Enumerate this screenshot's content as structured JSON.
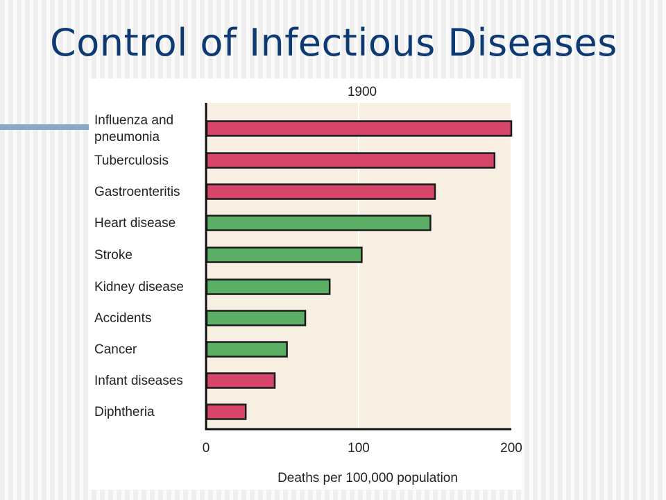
{
  "slide": {
    "title": "Control of Infectious Diseases"
  },
  "colors": {
    "title": "#0e3a73",
    "infectious": "#d6466a",
    "noninfectious": "#5aaf64",
    "plot_background": "#f6efe2",
    "accent_bar": "#8aa9c9"
  },
  "chart_data": {
    "type": "bar",
    "orientation": "horizontal",
    "title": "1900",
    "xlabel": "Deaths per 100,000 population",
    "ylabel": "",
    "xlim": [
      0,
      200
    ],
    "xticks": [
      0,
      100,
      200
    ],
    "grid": true,
    "legend": "none",
    "categories": [
      "Influenza and\npneumonia",
      "Tuberculosis",
      "Gastroenteritis",
      "Heart disease",
      "Stroke",
      "Kidney disease",
      "Accidents",
      "Cancer",
      "Infant diseases",
      "Diphtheria"
    ],
    "values": [
      200,
      189,
      150,
      147,
      102,
      81,
      65,
      53,
      45,
      26
    ],
    "bar_color_keys": [
      "infectious",
      "infectious",
      "infectious",
      "noninfectious",
      "noninfectious",
      "noninfectious",
      "noninfectious",
      "noninfectious",
      "infectious",
      "infectious"
    ]
  }
}
